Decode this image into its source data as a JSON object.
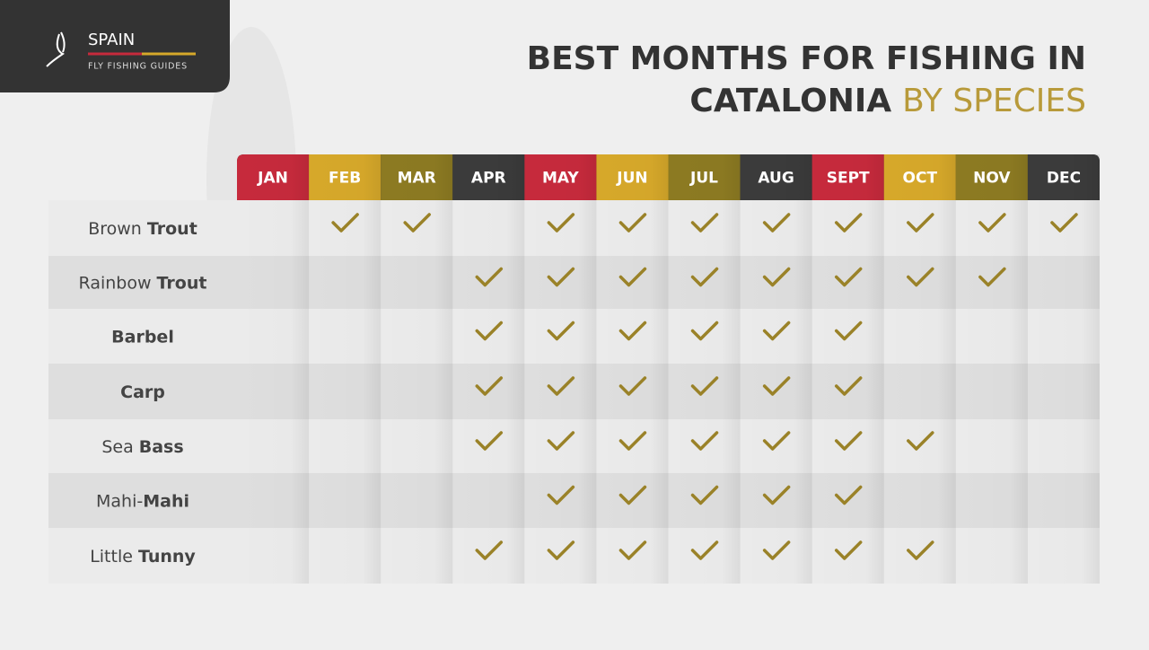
{
  "logo": {
    "name": "SPAIN",
    "tagline": "FLY FISHING GUIDES"
  },
  "title": {
    "line1": "BEST MONTHS FOR FISHING IN",
    "line2": "CATALONIA",
    "highlight": "BY SPECIES"
  },
  "months": [
    {
      "label": "JAN",
      "color": "#c62a3c"
    },
    {
      "label": "FEB",
      "color": "#d6a82a"
    },
    {
      "label": "MAR",
      "color": "#8c7a22"
    },
    {
      "label": "APR",
      "color": "#3b3b3b"
    },
    {
      "label": "MAY",
      "color": "#c62a3c"
    },
    {
      "label": "JUN",
      "color": "#d6a82a"
    },
    {
      "label": "JUL",
      "color": "#8c7a22"
    },
    {
      "label": "AUG",
      "color": "#3b3b3b"
    },
    {
      "label": "SEPT",
      "color": "#c62a3c"
    },
    {
      "label": "OCT",
      "color": "#d6a82a"
    },
    {
      "label": "NOV",
      "color": "#8c7a22"
    },
    {
      "label": "DEC",
      "color": "#3b3b3b"
    }
  ],
  "check_color": "#9a8228",
  "rows": [
    {
      "name": [
        {
          "text": "Brown ",
          "bold": false
        },
        {
          "text": "Trout",
          "bold": true
        }
      ],
      "months": [
        false,
        true,
        true,
        false,
        true,
        true,
        true,
        true,
        true,
        true,
        true,
        true
      ]
    },
    {
      "name": [
        {
          "text": "Rainbow ",
          "bold": false
        },
        {
          "text": "Trout",
          "bold": true
        }
      ],
      "months": [
        false,
        false,
        false,
        true,
        true,
        true,
        true,
        true,
        true,
        true,
        true,
        false
      ]
    },
    {
      "name": [
        {
          "text": "Barbel",
          "bold": true
        }
      ],
      "months": [
        false,
        false,
        false,
        true,
        true,
        true,
        true,
        true,
        true,
        false,
        false,
        false
      ]
    },
    {
      "name": [
        {
          "text": "Carp",
          "bold": true
        }
      ],
      "months": [
        false,
        false,
        false,
        true,
        true,
        true,
        true,
        true,
        true,
        false,
        false,
        false
      ]
    },
    {
      "name": [
        {
          "text": "Sea ",
          "bold": false
        },
        {
          "text": "Bass",
          "bold": true
        }
      ],
      "months": [
        false,
        false,
        false,
        true,
        true,
        true,
        true,
        true,
        true,
        true,
        false,
        false
      ]
    },
    {
      "name": [
        {
          "text": "Mahi-",
          "bold": false
        },
        {
          "text": "Mahi",
          "bold": true
        }
      ],
      "months": [
        false,
        false,
        false,
        false,
        true,
        true,
        true,
        true,
        true,
        false,
        false,
        false
      ]
    },
    {
      "name": [
        {
          "text": "Little ",
          "bold": false
        },
        {
          "text": "Tunny",
          "bold": true
        }
      ],
      "months": [
        false,
        false,
        false,
        true,
        true,
        true,
        true,
        true,
        true,
        true,
        false,
        false
      ]
    }
  ]
}
